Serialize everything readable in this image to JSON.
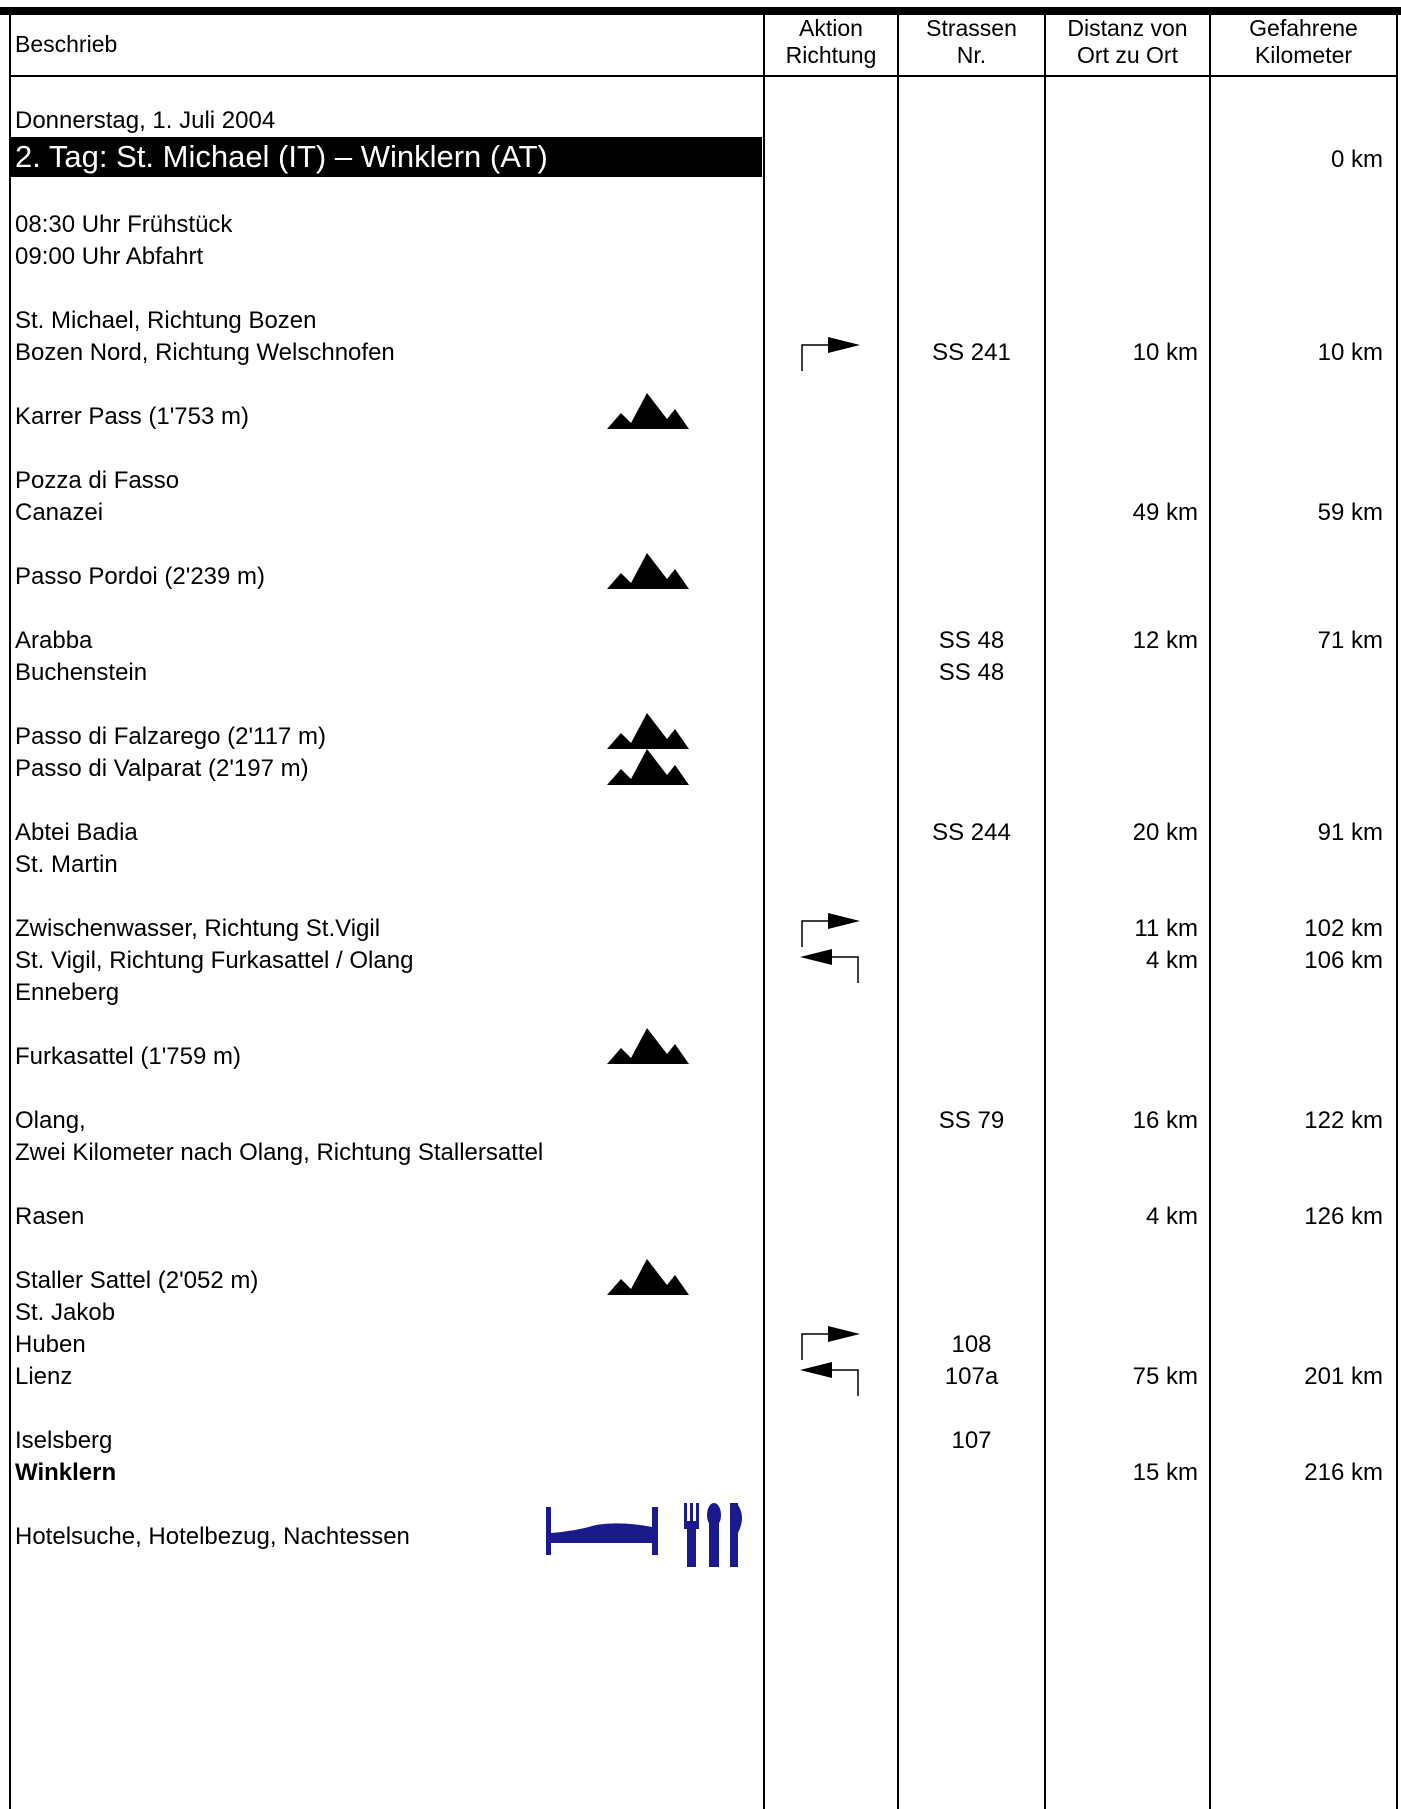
{
  "header": {
    "col1": "Beschrieb",
    "col2_line1": "Aktion",
    "col2_line2": "Richtung",
    "col3_line1": "Strassen",
    "col3_line2": "Nr.",
    "col4_line1": "Distanz von",
    "col4_line2": "Ort zu Ort",
    "col5_line1": "Gefahrene",
    "col5_line2": "Kilometer"
  },
  "date": "Donnerstag, 1. Juli 2004",
  "title": "2. Tag: St. Michael (IT) – Winklern (AT)",
  "start_km": "0 km",
  "schedule": [
    "08:30 Uhr Frühstück",
    "09:00 Uhr Abfahrt"
  ],
  "desc": {
    "r1": "St. Michael, Richtung Bozen",
    "r2": "Bozen Nord, Richtung Welschnofen",
    "r3": "Karrer Pass (1'753 m)",
    "r4": "Pozza di Fasso",
    "r5": "Canazei",
    "r6": "Passo Pordoi (2'239 m)",
    "r7": "Arabba",
    "r8": "Buchenstein",
    "r9": "Passo di Falzarego (2'117 m)",
    "r10": "Passo di Valparat (2'197 m)",
    "r11": "Abtei Badia",
    "r12": "St. Martin",
    "r13": "Zwischenwasser, Richtung St.Vigil",
    "r14": "St. Vigil, Richtung Furkasattel / Olang",
    "r15": "Enneberg",
    "r16": "Furkasattel (1'759 m)",
    "r17": "Olang,",
    "r18": "Zwei Kilometer nach Olang, Richtung Stallersattel",
    "r19": "Rasen",
    "r20": "Staller Sattel (2'052 m)",
    "r21": "St. Jakob",
    "r22": "Huben",
    "r23": "Lienz",
    "r24": "Iselsberg",
    "r25": "Winklern",
    "r26": "Hotelsuche, Hotelbezug, Nachtessen"
  },
  "road": {
    "bozen": "SS 241",
    "arabba": "SS 48",
    "buchenstein": "SS 48",
    "abtei": "SS 244",
    "olang": "SS 79",
    "huben": "108",
    "lienz": "107a",
    "iselsberg": "107"
  },
  "dist": {
    "bozen": "10 km",
    "canazei": "49 km",
    "arabba": "12 km",
    "abtei": "20 km",
    "zwischen": "11 km",
    "vigil": "4 km",
    "olang": "16 km",
    "rasen": "4 km",
    "lienz": "75 km",
    "winklern": "15 km"
  },
  "total": {
    "bozen": "10 km",
    "canazei": "59 km",
    "arabba": "71 km",
    "abtei": "91 km",
    "zwischen": "102 km",
    "vigil": "106 km",
    "olang": "122 km",
    "rasen": "126 km",
    "lienz": "201 km",
    "winklern": "216 km"
  },
  "icons": {
    "mountain": "mountain-pass-icon",
    "turn_right": "turn-right-icon",
    "turn_left": "turn-left-icon",
    "bed": "bed-icon",
    "cutlery": "cutlery-icon",
    "icon_color": "#1a1a8c"
  }
}
